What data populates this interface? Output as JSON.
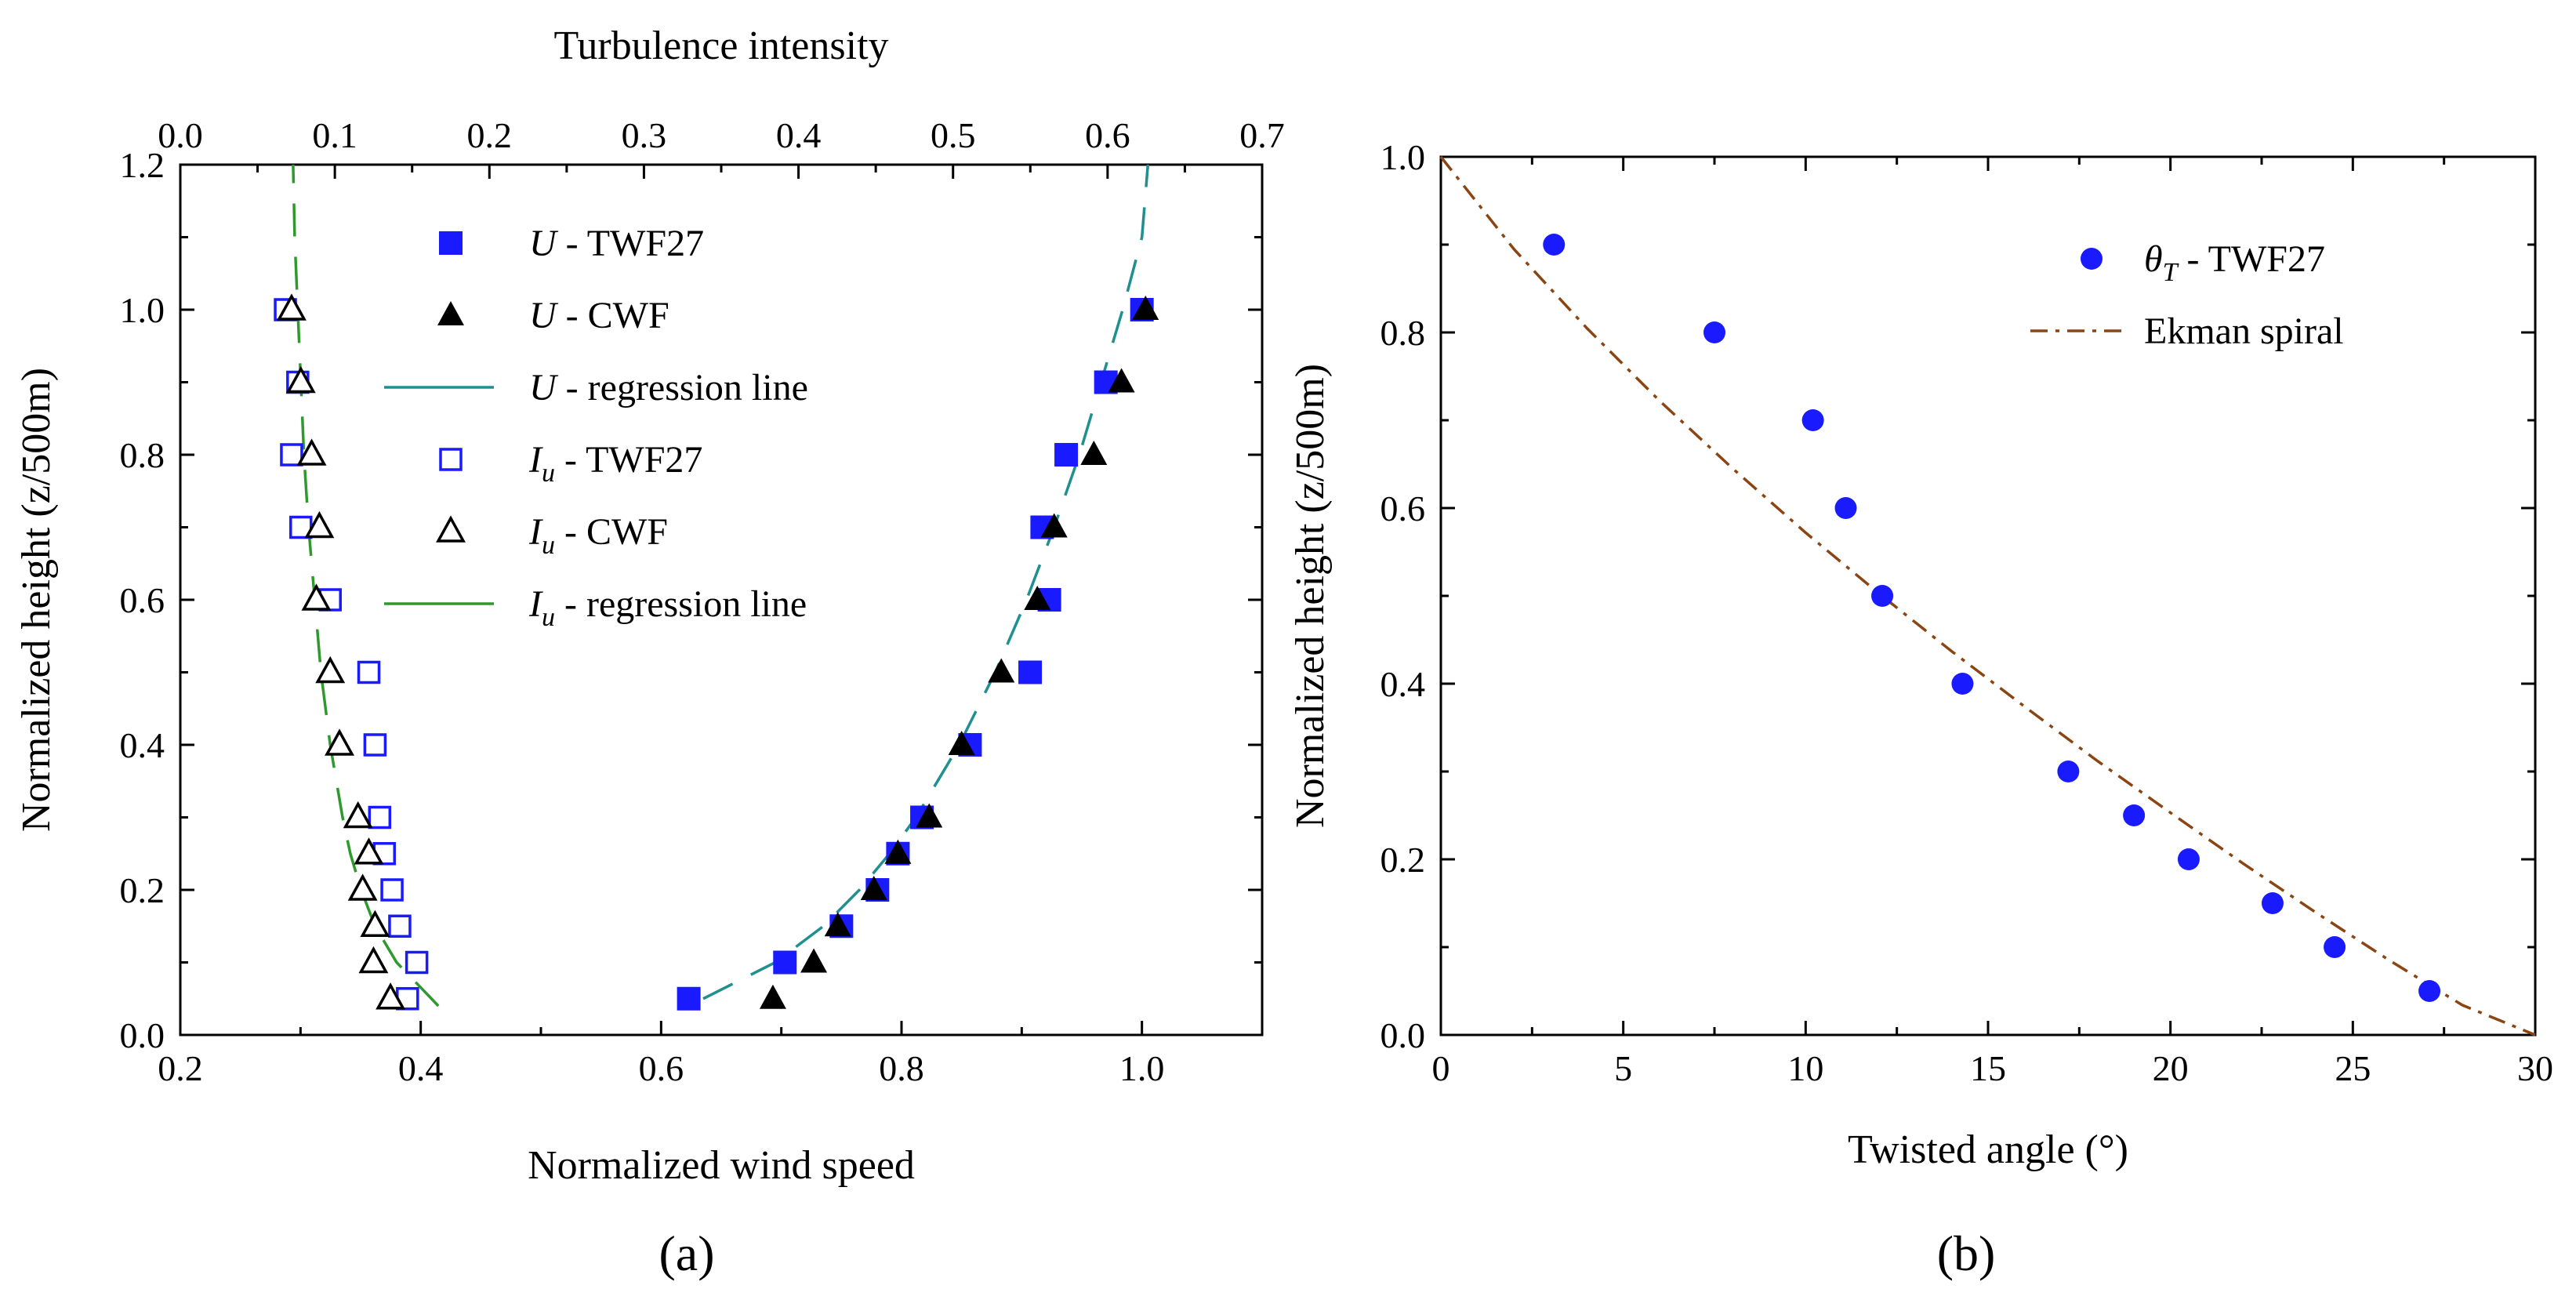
{
  "chart_data": [
    {
      "panel_label": "(a)",
      "type": "scatter",
      "xlabel": "Normalized wind speed",
      "x2label": "Turbulence intensity",
      "ylabel": "Normalized height (z/500m)",
      "xlim": [
        0.2,
        1.1
      ],
      "x2lim": [
        0.0,
        0.7
      ],
      "ylim": [
        0.0,
        1.2
      ],
      "xticks": [
        0.2,
        0.4,
        0.6,
        0.8,
        1.0
      ],
      "xtick_labels": [
        "0.2",
        "0.4",
        "0.6",
        "0.8",
        "1.0"
      ],
      "x2ticks": [
        0.0,
        0.1,
        0.2,
        0.3,
        0.4,
        0.5,
        0.6,
        0.7
      ],
      "x2tick_labels": [
        "0.0",
        "0.1",
        "0.2",
        "0.3",
        "0.4",
        "0.5",
        "0.6",
        "0.7"
      ],
      "yticks": [
        0.0,
        0.2,
        0.4,
        0.6,
        0.8,
        1.0,
        1.2
      ],
      "ytick_labels": [
        "0.0",
        "0.2",
        "0.4",
        "0.6",
        "0.8",
        "1.0",
        "1.2"
      ],
      "series": [
        {
          "name": "U - TWF27",
          "axis": "bottom",
          "marker": "filled-square",
          "color": "#1a1aff",
          "points": [
            [
              0.623,
              0.05
            ],
            [
              0.703,
              0.1
            ],
            [
              0.75,
              0.15
            ],
            [
              0.78,
              0.2
            ],
            [
              0.797,
              0.25
            ],
            [
              0.817,
              0.3
            ],
            [
              0.857,
              0.4
            ],
            [
              0.907,
              0.5
            ],
            [
              0.923,
              0.6
            ],
            [
              0.917,
              0.7
            ],
            [
              0.937,
              0.8
            ],
            [
              0.97,
              0.9
            ],
            [
              1.0,
              1.0
            ]
          ]
        },
        {
          "name": "U - CWF",
          "axis": "bottom",
          "marker": "filled-triangle",
          "color": "#000000",
          "points": [
            [
              0.693,
              0.05
            ],
            [
              0.727,
              0.1
            ],
            [
              0.747,
              0.15
            ],
            [
              0.777,
              0.2
            ],
            [
              0.797,
              0.25
            ],
            [
              0.823,
              0.3
            ],
            [
              0.85,
              0.4
            ],
            [
              0.883,
              0.5
            ],
            [
              0.913,
              0.6
            ],
            [
              0.927,
              0.7
            ],
            [
              0.96,
              0.8
            ],
            [
              0.983,
              0.9
            ],
            [
              1.003,
              1.0
            ]
          ]
        },
        {
          "name": "U - regression line",
          "axis": "bottom",
          "marker": "line",
          "dash": "dashed",
          "color": "#1f8f8f",
          "points": [
            [
              0.635,
              0.05
            ],
            [
              0.695,
              0.1
            ],
            [
              0.735,
              0.15
            ],
            [
              0.765,
              0.2
            ],
            [
              0.79,
              0.25
            ],
            [
              0.812,
              0.3
            ],
            [
              0.848,
              0.4
            ],
            [
              0.878,
              0.5
            ],
            [
              0.904,
              0.6
            ],
            [
              0.927,
              0.7
            ],
            [
              0.948,
              0.8
            ],
            [
              0.966,
              0.9
            ],
            [
              0.984,
              1.0
            ],
            [
              1.0,
              1.1
            ],
            [
              1.005,
              1.2
            ]
          ]
        },
        {
          "name": "I_u - TWF27",
          "axis": "top",
          "marker": "open-square",
          "color": "#1a1aff",
          "points": [
            [
              0.147,
              0.05
            ],
            [
              0.153,
              0.1
            ],
            [
              0.142,
              0.15
            ],
            [
              0.137,
              0.2
            ],
            [
              0.132,
              0.25
            ],
            [
              0.129,
              0.3
            ],
            [
              0.126,
              0.4
            ],
            [
              0.122,
              0.5
            ],
            [
              0.097,
              0.6
            ],
            [
              0.078,
              0.7
            ],
            [
              0.072,
              0.8
            ],
            [
              0.076,
              0.9
            ],
            [
              0.068,
              1.0
            ]
          ]
        },
        {
          "name": "I_u - CWF",
          "axis": "top",
          "marker": "open-triangle",
          "color": "#000000",
          "points": [
            [
              0.136,
              0.05
            ],
            [
              0.125,
              0.1
            ],
            [
              0.126,
              0.15
            ],
            [
              0.118,
              0.2
            ],
            [
              0.122,
              0.25
            ],
            [
              0.115,
              0.3
            ],
            [
              0.103,
              0.4
            ],
            [
              0.097,
              0.5
            ],
            [
              0.088,
              0.6
            ],
            [
              0.09,
              0.7
            ],
            [
              0.085,
              0.8
            ],
            [
              0.078,
              0.9
            ],
            [
              0.072,
              1.0
            ]
          ]
        },
        {
          "name": "I_u - regression line",
          "axis": "top",
          "marker": "line",
          "dash": "dashed",
          "color": "#2e9a2e",
          "points": [
            [
              0.167,
              0.04
            ],
            [
              0.14,
              0.1
            ],
            [
              0.126,
              0.15
            ],
            [
              0.117,
              0.2
            ],
            [
              0.11,
              0.25
            ],
            [
              0.105,
              0.3
            ],
            [
              0.097,
              0.4
            ],
            [
              0.091,
              0.5
            ],
            [
              0.087,
              0.6
            ],
            [
              0.083,
              0.7
            ],
            [
              0.08,
              0.8
            ],
            [
              0.078,
              0.9
            ],
            [
              0.076,
              1.0
            ],
            [
              0.074,
              1.1
            ],
            [
              0.073,
              1.2
            ]
          ]
        }
      ],
      "legend": [
        {
          "sym": "U",
          "text": " - TWF27"
        },
        {
          "sym": "U",
          "text": " - CWF"
        },
        {
          "sym": "U",
          "text": " - regression line"
        },
        {
          "sym": "I",
          "sub": "u",
          "text": " - TWF27"
        },
        {
          "sym": "I",
          "sub": "u",
          "text": " - CWF"
        },
        {
          "sym": "I",
          "sub": "u",
          "text": " - regression line"
        }
      ]
    },
    {
      "panel_label": "(b)",
      "type": "scatter",
      "xlabel": "Twisted angle (°)",
      "ylabel": "Normalized height (z/500m)",
      "xlim": [
        0,
        30
      ],
      "ylim": [
        0.0,
        1.0
      ],
      "xticks": [
        0,
        5,
        10,
        15,
        20,
        25,
        30
      ],
      "xtick_labels": [
        "0",
        "5",
        "10",
        "15",
        "20",
        "25",
        "30"
      ],
      "yticks": [
        0.0,
        0.2,
        0.4,
        0.6,
        0.8,
        1.0
      ],
      "ytick_labels": [
        "0.0",
        "0.2",
        "0.4",
        "0.6",
        "0.8",
        "1.0"
      ],
      "series": [
        {
          "name": "θ_T - TWF27",
          "marker": "filled-circle",
          "color": "#1a1aff",
          "points": [
            [
              3.1,
              0.9
            ],
            [
              7.5,
              0.8
            ],
            [
              10.2,
              0.7
            ],
            [
              11.1,
              0.6
            ],
            [
              12.1,
              0.5
            ],
            [
              14.3,
              0.4
            ],
            [
              17.2,
              0.3
            ],
            [
              19.0,
              0.25
            ],
            [
              20.5,
              0.2
            ],
            [
              22.8,
              0.15
            ],
            [
              24.5,
              0.1
            ],
            [
              27.1,
              0.05
            ]
          ]
        },
        {
          "name": "Ekman spiral",
          "marker": "line",
          "dash": "dashdot",
          "color": "#8b4513",
          "points": [
            [
              0,
              1.0
            ],
            [
              2,
              0.895
            ],
            [
              4,
              0.805
            ],
            [
              6,
              0.722
            ],
            [
              8,
              0.645
            ],
            [
              10,
              0.572
            ],
            [
              12,
              0.503
            ],
            [
              14,
              0.437
            ],
            [
              16,
              0.374
            ],
            [
              18,
              0.312
            ],
            [
              20,
              0.253
            ],
            [
              22,
              0.195
            ],
            [
              24,
              0.139
            ],
            [
              26,
              0.085
            ],
            [
              28,
              0.034
            ],
            [
              30,
              0.0
            ]
          ]
        }
      ],
      "legend": [
        {
          "sym": "θ",
          "sub": "T",
          "text": " - TWF27"
        },
        {
          "text": "Ekman spiral"
        }
      ]
    }
  ]
}
